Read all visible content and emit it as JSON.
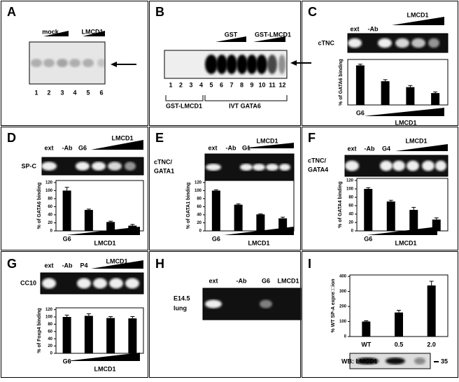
{
  "panels": [
    {
      "letter": "A",
      "labels": [
        "mock",
        "LMCD1",
        "1",
        "2",
        "3",
        "4",
        "5",
        "6"
      ]
    },
    {
      "letter": "B",
      "labels": [
        "GST",
        "GST-LMCD1",
        "1",
        "2",
        "3",
        "4",
        "5",
        "6",
        "7",
        "8",
        "9",
        "10",
        "11",
        "12",
        "GST-LMCD1",
        "IVT GATA6"
      ]
    },
    {
      "letter": "C",
      "labels": [
        "ext",
        "-Ab",
        "LMCD1",
        "cTNC"
      ]
    },
    {
      "letter": "D",
      "labels": [
        "ext",
        "-Ab",
        "G6",
        "LMCD1",
        "SP-C"
      ]
    },
    {
      "letter": "E",
      "labels": [
        "ext",
        "-Ab",
        "G1",
        "LMCD1",
        "cTNC/",
        "GATA1"
      ]
    },
    {
      "letter": "F",
      "labels": [
        "ext",
        "-Ab",
        "G4",
        "LMCD1",
        "cTNC/",
        "GATA4"
      ]
    },
    {
      "letter": "G",
      "labels": [
        "ext",
        "-Ab",
        "P4",
        "LMCD1",
        "CC10"
      ]
    },
    {
      "letter": "H",
      "labels": [
        "ext",
        "-Ab",
        "G6",
        "LMCD1",
        "E14.5",
        "lung"
      ]
    },
    {
      "letter": "I",
      "labels": [
        "WB: LMCD1",
        "35"
      ]
    }
  ],
  "chart_data": [
    {
      "type": "bar",
      "y_label": "% of GATA6 binding",
      "x_label": "LMCD1",
      "categories": [
        "G6",
        null,
        null,
        null
      ],
      "values": [
        100,
        60,
        45,
        30
      ],
      "errors": [
        3,
        4,
        4,
        3
      ],
      "ylim": [
        0,
        115
      ],
      "color": "#000000"
    },
    {
      "type": "bar",
      "y_label": "% of GATA6 binding",
      "x_label": "LMCD1",
      "categories": [
        "G6",
        null,
        null,
        null
      ],
      "values": [
        100,
        52,
        22,
        13
      ],
      "errors": [
        8,
        2,
        2,
        3
      ],
      "ylim": [
        0,
        125
      ],
      "yticks": [
        0,
        20,
        40,
        60,
        80,
        100,
        120
      ],
      "color": "#000000"
    },
    {
      "type": "bar",
      "y_label": "% of GATA1 binding",
      "x_label": "LMCD1",
      "categories": [
        "G6",
        null,
        null,
        null
      ],
      "values": [
        100,
        65,
        41,
        31
      ],
      "errors": [
        2,
        2,
        1,
        3
      ],
      "ylim": [
        0,
        125
      ],
      "yticks": [
        0,
        20,
        40,
        60,
        80,
        100,
        120
      ],
      "color": "#000000"
    },
    {
      "type": "bar",
      "y_label": "% of GATA4 binding",
      "x_label": "LMCD1",
      "categories": [
        "G6",
        null,
        null,
        null
      ],
      "values": [
        100,
        70,
        50,
        27
      ],
      "errors": [
        3,
        3,
        6,
        4
      ],
      "ylim": [
        0,
        125
      ],
      "yticks": [
        0,
        20,
        40,
        60,
        80,
        100,
        120
      ],
      "color": "#000000"
    },
    {
      "type": "bar",
      "y_label": "% of Foxp4 binding",
      "x_label": "LMCD1",
      "categories": [
        "G6",
        null,
        null,
        null
      ],
      "values": [
        100,
        103,
        97,
        96
      ],
      "errors": [
        5,
        6,
        4,
        5
      ],
      "ylim": [
        0,
        125
      ],
      "yticks": [
        0,
        20,
        40,
        60,
        80,
        100,
        120
      ],
      "color": "#000000"
    },
    {
      "type": "bar",
      "y_label": "% WT SP-A expre□□ion",
      "categories": [
        "WT",
        "0.5",
        "2.0"
      ],
      "values": [
        100,
        160,
        340
      ],
      "errors": [
        5,
        15,
        28
      ],
      "ylim": [
        0,
        410
      ],
      "yticks": [
        0,
        100,
        200,
        300,
        400
      ],
      "color": "#000000"
    }
  ]
}
